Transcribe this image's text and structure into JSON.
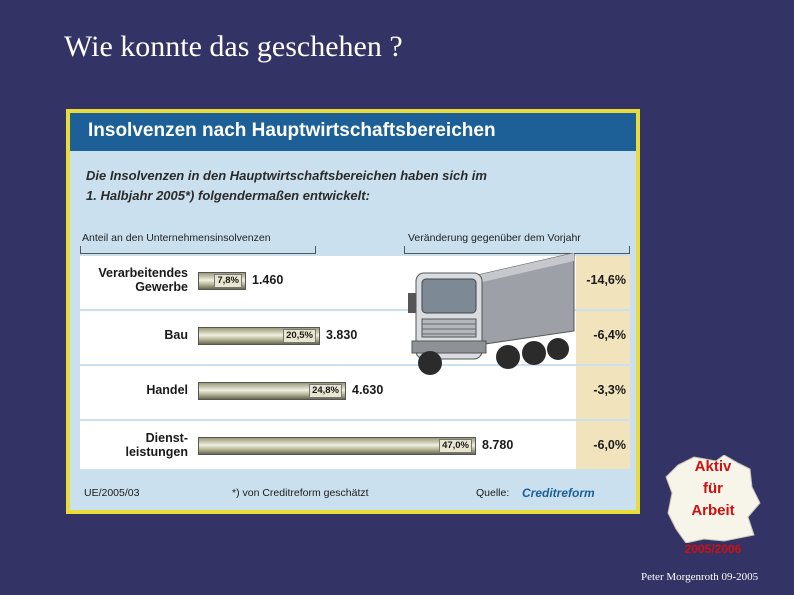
{
  "slide": {
    "title": "Wie konnte das geschehen ?",
    "author": "Peter Morgenroth  09-2005"
  },
  "logo": {
    "line1": "Aktiv",
    "line2": "für",
    "line3": "Arbeit",
    "year": "2005/2006"
  },
  "chart_data": {
    "type": "bar",
    "title": "Insolvenzen nach Hauptwirtschaftsbereichen",
    "subtitle_line1": "Die Insolvenzen in den Hauptwirtschaftsbereichen haben sich im",
    "subtitle_line2": "1. Halbjahr 2005*) folgendermaßen entwickelt:",
    "left_header": "Anteil an den Unternehmensinsolvenzen",
    "right_header": "Veränderung gegenüber dem Vorjahr",
    "categories": [
      {
        "line1": "Verarbeitendes",
        "line2": "Gewerbe",
        "share": 7.8,
        "share_label": "7,8%",
        "value": 1460,
        "value_label": "1.460",
        "change": -14.6,
        "change_label": "-14,6%"
      },
      {
        "line1": "Bau",
        "line2": "",
        "share": 20.5,
        "share_label": "20,5%",
        "value": 3830,
        "value_label": "3.830",
        "change": -6.4,
        "change_label": "-6,4%"
      },
      {
        "line1": "Handel",
        "line2": "",
        "share": 24.8,
        "share_label": "24,8%",
        "value": 4630,
        "value_label": "4.630",
        "change": -3.3,
        "change_label": "-3,3%"
      },
      {
        "line1": "Dienst-",
        "line2": "leistungen",
        "share": 47.0,
        "share_label": "47,0%",
        "value": 8780,
        "value_label": "8.780",
        "change": -6.0,
        "change_label": "-6,0%"
      }
    ],
    "footer_left": "UE/2005/03",
    "footnote": "*) von Creditreform geschätzt",
    "source_label": "Quelle:",
    "source_name": "Creditreform",
    "colors": {
      "header": "#1d5f97",
      "panel": "#cbe0ee",
      "change_column": "#f1e3bc",
      "frame": "#e8dc3a"
    }
  }
}
